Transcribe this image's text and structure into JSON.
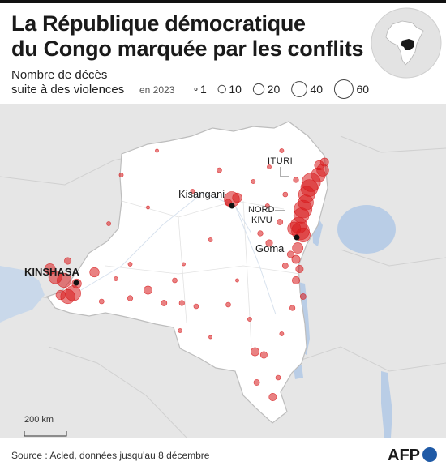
{
  "title_line1": "La République démocratique",
  "title_line2": "du Congo marquée par les conflits",
  "legend": {
    "title_line1": "Nombre de décès",
    "title_line2": "suite à des violences",
    "year": "en 2023",
    "sizes": [
      {
        "value": 1,
        "label": "1"
      },
      {
        "value": 10,
        "label": "10"
      },
      {
        "value": 20,
        "label": "20"
      },
      {
        "value": 40,
        "label": "40"
      },
      {
        "value": 60,
        "label": "60"
      }
    ]
  },
  "labels": {
    "kinshasa": "KINSHASA",
    "kisangani": "Kisangani",
    "ituri": "ITURI",
    "nord_kivu_1": "NORD",
    "nord_kivu_2": "KIVU",
    "goma": "Goma"
  },
  "scale_label": "200 km",
  "source": "Source : Acled, données jusqu'au 8 décembre",
  "logo_text": "AFP",
  "colors": {
    "event": "#d7191c",
    "country_fill": "#ffffff",
    "background": "#e6e6e6",
    "water": "#b9cde6"
  },
  "events": [
    {
      "lon": 29.65,
      "lat": 1.55,
      "deaths": 60
    },
    {
      "lon": 29.4,
      "lat": 0.8,
      "deaths": 45
    },
    {
      "lon": 29.55,
      "lat": 1.2,
      "deaths": 50
    },
    {
      "lon": 30.05,
      "lat": 2.0,
      "deaths": 35
    },
    {
      "lon": 30.3,
      "lat": 2.3,
      "deaths": 25
    },
    {
      "lon": 29.2,
      "lat": -0.1,
      "deaths": 55
    },
    {
      "lon": 29.1,
      "lat": -0.5,
      "deaths": 40
    },
    {
      "lon": 29.35,
      "lat": 0.3,
      "deaths": 40
    },
    {
      "lon": 28.95,
      "lat": -1.1,
      "deaths": 45
    },
    {
      "lon": 29.05,
      "lat": -1.45,
      "deaths": 55
    },
    {
      "lon": 29.2,
      "lat": -1.7,
      "deaths": 35
    },
    {
      "lon": 28.7,
      "lat": -1.3,
      "deaths": 30
    },
    {
      "lon": 30.4,
      "lat": 2.8,
      "deaths": 12
    },
    {
      "lon": 30.1,
      "lat": 2.6,
      "deaths": 15
    },
    {
      "lon": 25.2,
      "lat": 0.5,
      "deaths": 40
    },
    {
      "lon": 25.5,
      "lat": 0.6,
      "deaths": 15
    },
    {
      "lon": 25.0,
      "lat": 0.3,
      "deaths": 8
    },
    {
      "lon": 15.3,
      "lat": -4.3,
      "deaths": 30
    },
    {
      "lon": 15.8,
      "lat": -4.5,
      "deaths": 35
    },
    {
      "lon": 16.3,
      "lat": -5.3,
      "deaths": 40
    },
    {
      "lon": 16.0,
      "lat": -5.5,
      "deaths": 35
    },
    {
      "lon": 15.6,
      "lat": -5.4,
      "deaths": 15
    },
    {
      "lon": 16.5,
      "lat": -4.7,
      "deaths": 15
    },
    {
      "lon": 15.0,
      "lat": -3.8,
      "deaths": 20
    },
    {
      "lon": 17.5,
      "lat": -4.0,
      "deaths": 15
    },
    {
      "lon": 16.0,
      "lat": -3.3,
      "deaths": 8
    },
    {
      "lon": 28.9,
      "lat": -2.5,
      "deaths": 20
    },
    {
      "lon": 28.8,
      "lat": -3.2,
      "deaths": 12
    },
    {
      "lon": 29.0,
      "lat": -3.8,
      "deaths": 10
    },
    {
      "lon": 28.5,
      "lat": -2.9,
      "deaths": 8
    },
    {
      "lon": 28.2,
      "lat": -3.6,
      "deaths": 6
    },
    {
      "lon": 28.8,
      "lat": -4.5,
      "deaths": 10
    },
    {
      "lon": 29.2,
      "lat": -5.5,
      "deaths": 6
    },
    {
      "lon": 28.6,
      "lat": -6.2,
      "deaths": 5
    },
    {
      "lon": 27.3,
      "lat": -2.2,
      "deaths": 8
    },
    {
      "lon": 26.8,
      "lat": -1.6,
      "deaths": 5
    },
    {
      "lon": 27.9,
      "lat": -0.9,
      "deaths": 6
    },
    {
      "lon": 20.5,
      "lat": -5.1,
      "deaths": 12
    },
    {
      "lon": 21.4,
      "lat": -5.9,
      "deaths": 6
    },
    {
      "lon": 22.4,
      "lat": -5.9,
      "deaths": 5
    },
    {
      "lon": 19.5,
      "lat": -5.6,
      "deaths": 5
    },
    {
      "lon": 26.5,
      "lat": -8.9,
      "deaths": 12
    },
    {
      "lon": 27.0,
      "lat": -9.1,
      "deaths": 8
    },
    {
      "lon": 27.5,
      "lat": -11.7,
      "deaths": 10
    },
    {
      "lon": 26.6,
      "lat": -10.8,
      "deaths": 6
    },
    {
      "lon": 23.2,
      "lat": -6.1,
      "deaths": 4
    },
    {
      "lon": 25.0,
      "lat": -6.0,
      "deaths": 4
    },
    {
      "lon": 22.0,
      "lat": -4.5,
      "deaths": 4
    },
    {
      "lon": 19.0,
      "lat": 2.0,
      "deaths": 3
    },
    {
      "lon": 23.0,
      "lat": 1.0,
      "deaths": 3
    },
    {
      "lon": 24.5,
      "lat": 2.3,
      "deaths": 4
    },
    {
      "lon": 27.3,
      "lat": 2.5,
      "deaths": 3
    },
    {
      "lon": 28.0,
      "lat": 3.5,
      "deaths": 3
    },
    {
      "lon": 20.5,
      "lat": 0.0,
      "deaths": 2
    },
    {
      "lon": 18.3,
      "lat": -1.0,
      "deaths": 3
    },
    {
      "lon": 24.0,
      "lat": -2.0,
      "deaths": 3
    },
    {
      "lon": 22.5,
      "lat": -3.5,
      "deaths": 2
    },
    {
      "lon": 25.5,
      "lat": -4.5,
      "deaths": 2
    },
    {
      "lon": 26.2,
      "lat": -6.9,
      "deaths": 3
    },
    {
      "lon": 28.8,
      "lat": 1.7,
      "deaths": 5
    },
    {
      "lon": 28.2,
      "lat": 0.8,
      "deaths": 4
    },
    {
      "lon": 26.4,
      "lat": 1.6,
      "deaths": 3
    },
    {
      "lon": 27.2,
      "lat": 0.1,
      "deaths": 3
    },
    {
      "lon": 21.0,
      "lat": 3.5,
      "deaths": 2
    },
    {
      "lon": 19.5,
      "lat": -3.5,
      "deaths": 3
    },
    {
      "lon": 17.9,
      "lat": -5.8,
      "deaths": 4
    },
    {
      "lon": 18.7,
      "lat": -4.4,
      "deaths": 3
    },
    {
      "lon": 22.3,
      "lat": -7.6,
      "deaths": 3
    },
    {
      "lon": 24.0,
      "lat": -8.0,
      "deaths": 2
    },
    {
      "lon": 28.0,
      "lat": -7.8,
      "deaths": 3
    },
    {
      "lon": 27.8,
      "lat": -10.5,
      "deaths": 4
    }
  ]
}
